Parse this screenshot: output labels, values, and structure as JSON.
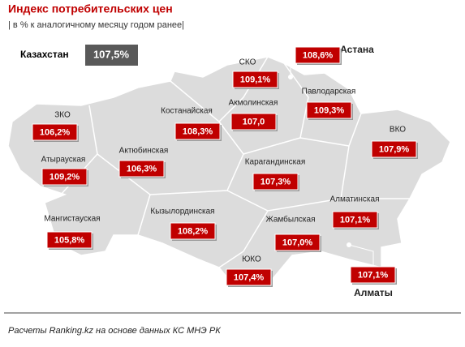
{
  "header": {
    "title": "Индекс потребительских цен",
    "subtitle": "| в % к аналогичному месяцу годом ранее|"
  },
  "country": {
    "name": "Казахстан",
    "value": "107,5%"
  },
  "regions": [
    {
      "name": "СКО",
      "value": "109,1%"
    },
    {
      "name": "Астана",
      "value": "108,6%"
    },
    {
      "name": "Акмолинская",
      "value": "107,0"
    },
    {
      "name": "Павлодарская",
      "value": "109,3%"
    },
    {
      "name": "Костанайская",
      "value": "108,3%"
    },
    {
      "name": "ЗКО",
      "value": "106,2%"
    },
    {
      "name": "ВКО",
      "value": "107,9%"
    },
    {
      "name": "Атырауская",
      "value": "109,2%"
    },
    {
      "name": "Актюбинская",
      "value": "106,3%"
    },
    {
      "name": "Карагандинская",
      "value": "107,3%"
    },
    {
      "name": "Алматинская",
      "value": "107,1%"
    },
    {
      "name": "Кызылординская",
      "value": "108,2%"
    },
    {
      "name": "Мангистауская",
      "value": "105,8%"
    },
    {
      "name": "Жамбылская",
      "value": "107,0%"
    },
    {
      "name": "ЮКО",
      "value": "107,4%"
    },
    {
      "name": "Алматы",
      "value": "107,1%"
    }
  ],
  "footer": {
    "source": "Расчеты Ranking.kz на основе данных КС МНЭ РК"
  }
}
